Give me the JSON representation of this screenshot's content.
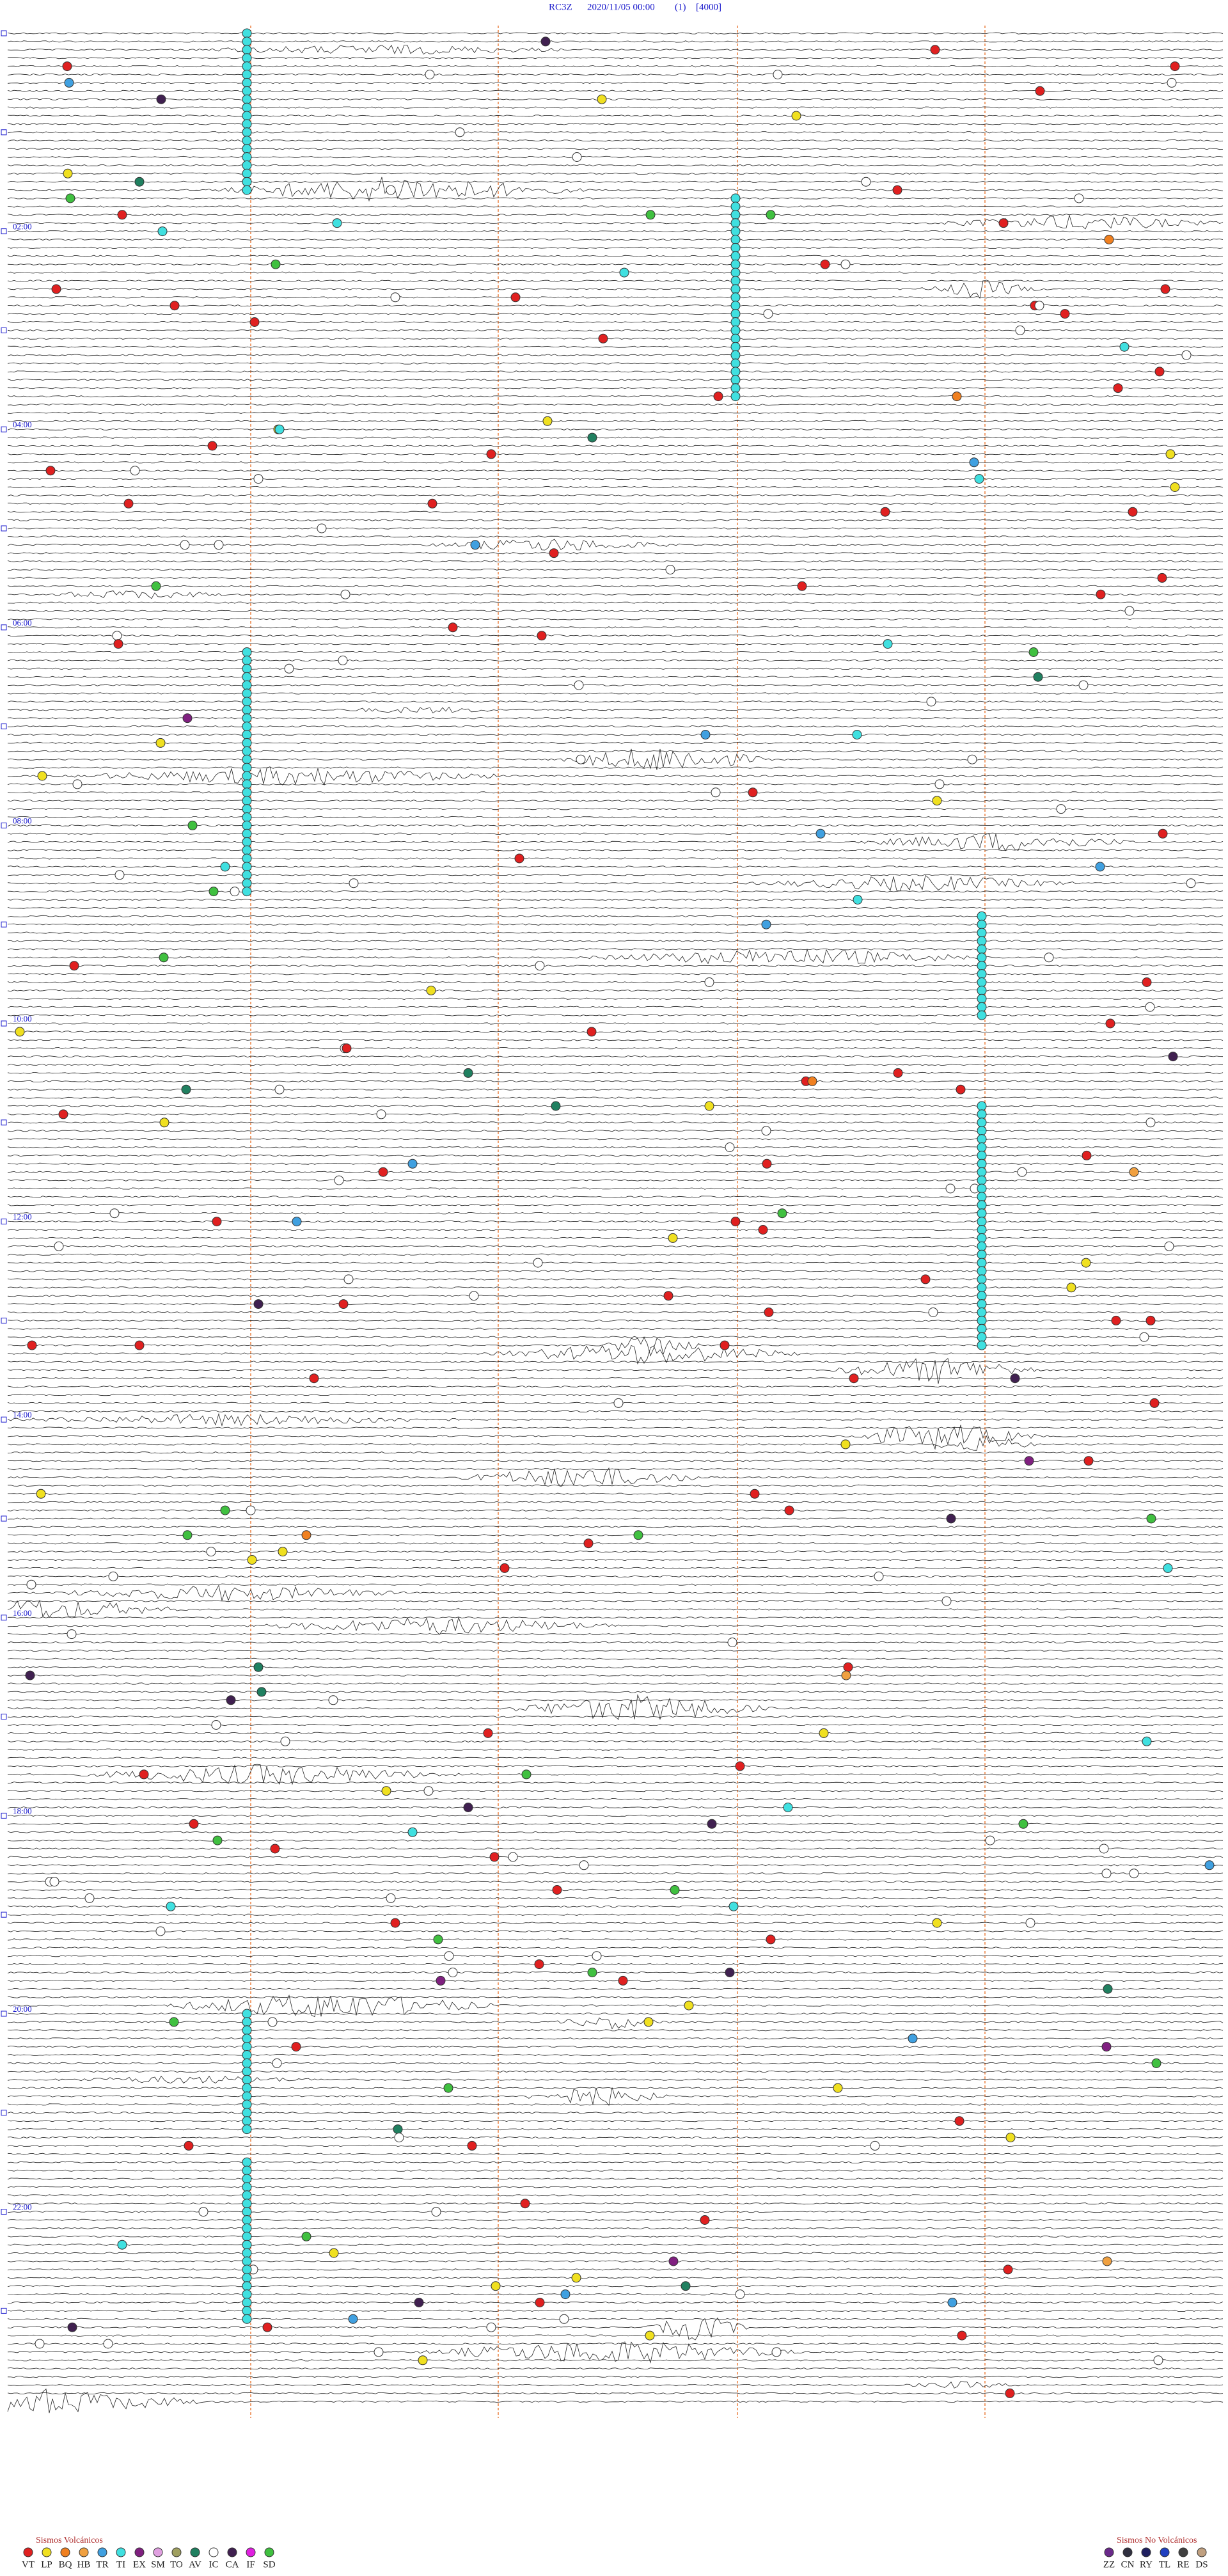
{
  "header": {
    "station": "RC3Z",
    "datetime": "2020/11/05 00:00",
    "page": "(1)",
    "scale": "[4000]"
  },
  "time_labels": [
    "02:00",
    "04:00",
    "06:00",
    "08:00",
    "10:00",
    "12:00",
    "14:00",
    "16:00",
    "18:00",
    "20:00",
    "22:00"
  ],
  "legend_volcanic": {
    "title": "Sismos Volcánicos",
    "items": [
      {
        "code": "VT",
        "color": "#e02020"
      },
      {
        "code": "LP",
        "color": "#f0e020"
      },
      {
        "code": "BQ",
        "color": "#f08020"
      },
      {
        "code": "HB",
        "color": "#f0a040"
      },
      {
        "code": "TR",
        "color": "#40a0e0"
      },
      {
        "code": "TI",
        "color": "#40e0e0"
      },
      {
        "code": "EX",
        "color": "#802080"
      },
      {
        "code": "SM",
        "color": "#e0a0e0"
      },
      {
        "code": "TO",
        "color": "#a0a060"
      },
      {
        "code": "AV",
        "color": "#208060"
      },
      {
        "code": "IC",
        "color": "#ffffff"
      },
      {
        "code": "CA",
        "color": "#402050"
      },
      {
        "code": "IF",
        "color": "#e020e0"
      },
      {
        "code": "SD",
        "color": "#40c040"
      }
    ]
  },
  "legend_non_volcanic": {
    "title": "Sismos No Volcánicos",
    "items": [
      {
        "code": "ZZ",
        "color": "#6a2a8a"
      },
      {
        "code": "CN",
        "color": "#303040"
      },
      {
        "code": "RY",
        "color": "#202060"
      },
      {
        "code": "TL",
        "color": "#2040c0"
      },
      {
        "code": "RE",
        "color": "#404040"
      },
      {
        "code": "DS",
        "color": "#c0a080"
      }
    ]
  }
}
